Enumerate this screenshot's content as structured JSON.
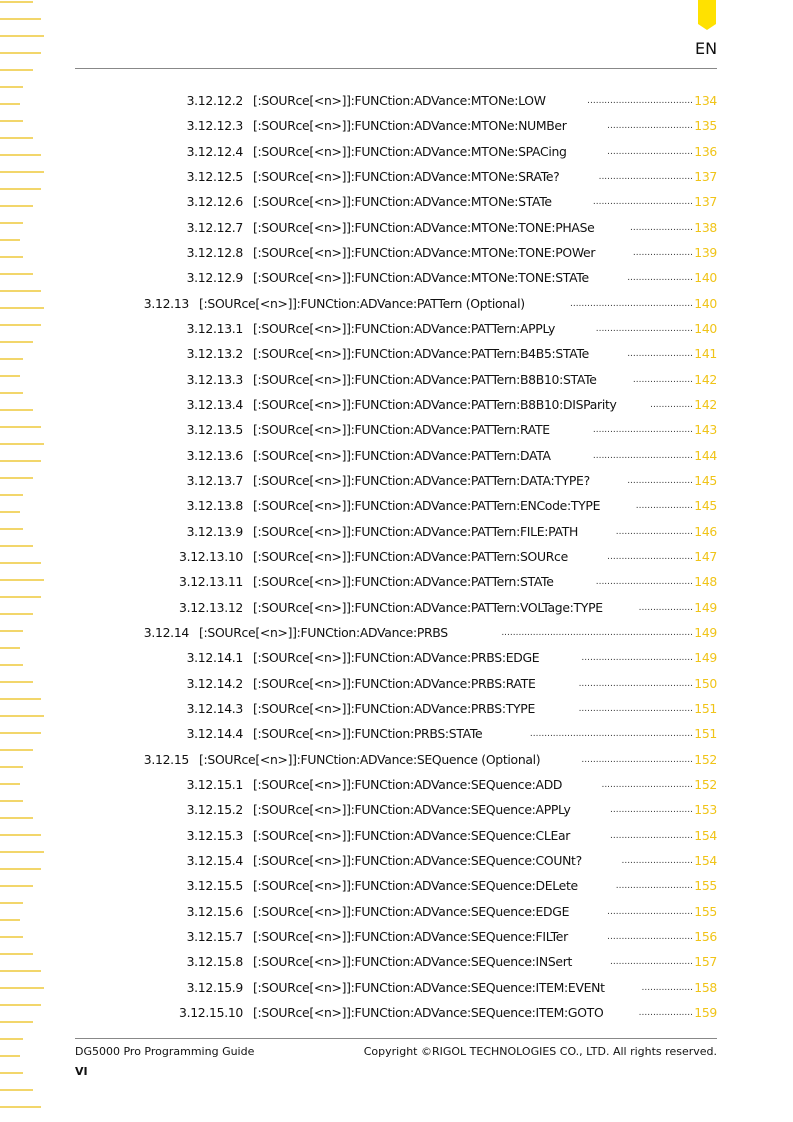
{
  "header": {
    "language": "EN",
    "accent": "#ffe100",
    "link_color": "#f0c419"
  },
  "toc": [
    {
      "level": 3,
      "num": "3.12.12.2",
      "title": "[:SOURce[<n>]]:FUNCtion:ADVance:MTONe:LOW",
      "page": "134"
    },
    {
      "level": 3,
      "num": "3.12.12.3",
      "title": "[:SOURce[<n>]]:FUNCtion:ADVance:MTONe:NUMBer",
      "page": "135"
    },
    {
      "level": 3,
      "num": "3.12.12.4",
      "title": "[:SOURce[<n>]]:FUNCtion:ADVance:MTONe:SPACing",
      "page": "136"
    },
    {
      "level": 3,
      "num": "3.12.12.5",
      "title": "[:SOURce[<n>]]:FUNCtion:ADVance:MTONe:SRATe?",
      "page": "137"
    },
    {
      "level": 3,
      "num": "3.12.12.6",
      "title": "[:SOURce[<n>]]:FUNCtion:ADVance:MTONe:STATe",
      "page": "137"
    },
    {
      "level": 3,
      "num": "3.12.12.7",
      "title": "[:SOURce[<n>]]:FUNCtion:ADVance:MTONe:TONE:PHASe",
      "page": "138"
    },
    {
      "level": 3,
      "num": "3.12.12.8",
      "title": "[:SOURce[<n>]]:FUNCtion:ADVance:MTONe:TONE:POWer",
      "page": "139"
    },
    {
      "level": 3,
      "num": "3.12.12.9",
      "title": "[:SOURce[<n>]]:FUNCtion:ADVance:MTONe:TONE:STATe",
      "page": "140"
    },
    {
      "level": 2,
      "num": "3.12.13",
      "title": "[:SOURce[<n>]]:FUNCtion:ADVance:PATTern (Optional)",
      "page": "140"
    },
    {
      "level": 3,
      "num": "3.12.13.1",
      "title": "[:SOURce[<n>]]:FUNCtion:ADVance:PATTern:APPLy",
      "page": "140"
    },
    {
      "level": 3,
      "num": "3.12.13.2",
      "title": "[:SOURce[<n>]]:FUNCtion:ADVance:PATTern:B4B5:STATe",
      "page": "141"
    },
    {
      "level": 3,
      "num": "3.12.13.3",
      "title": "[:SOURce[<n>]]:FUNCtion:ADVance:PATTern:B8B10:STATe",
      "page": "142"
    },
    {
      "level": 3,
      "num": "3.12.13.4",
      "title": "[:SOURce[<n>]]:FUNCtion:ADVance:PATTern:B8B10:DISParity",
      "page": "142"
    },
    {
      "level": 3,
      "num": "3.12.13.5",
      "title": "[:SOURce[<n>]]:FUNCtion:ADVance:PATTern:RATE",
      "page": "143"
    },
    {
      "level": 3,
      "num": "3.12.13.6",
      "title": "[:SOURce[<n>]]:FUNCtion:ADVance:PATTern:DATA",
      "page": "144"
    },
    {
      "level": 3,
      "num": "3.12.13.7",
      "title": "[:SOURce[<n>]]:FUNCtion:ADVance:PATTern:DATA:TYPE?",
      "page": "145"
    },
    {
      "level": 3,
      "num": "3.12.13.8",
      "title": "[:SOURce[<n>]]:FUNCtion:ADVance:PATTern:ENCode:TYPE",
      "page": "145"
    },
    {
      "level": 3,
      "num": "3.12.13.9",
      "title": "[:SOURce[<n>]]:FUNCtion:ADVance:PATTern:FILE:PATH",
      "page": "146"
    },
    {
      "level": 3,
      "num": "3.12.13.10",
      "title": "[:SOURce[<n>]]:FUNCtion:ADVance:PATTern:SOURce",
      "page": "147"
    },
    {
      "level": 3,
      "num": "3.12.13.11",
      "title": "[:SOURce[<n>]]:FUNCtion:ADVance:PATTern:STATe",
      "page": "148"
    },
    {
      "level": 3,
      "num": "3.12.13.12",
      "title": "[:SOURce[<n>]]:FUNCtion:ADVance:PATTern:VOLTage:TYPE",
      "page": "149"
    },
    {
      "level": 2,
      "num": "3.12.14",
      "title": "[:SOURce[<n>]]:FUNCtion:ADVance:PRBS",
      "page": "149"
    },
    {
      "level": 3,
      "num": "3.12.14.1",
      "title": "[:SOURce[<n>]]:FUNCtion:ADVance:PRBS:EDGE",
      "page": "149"
    },
    {
      "level": 3,
      "num": "3.12.14.2",
      "title": "[:SOURce[<n>]]:FUNCtion:ADVance:PRBS:RATE",
      "page": "150"
    },
    {
      "level": 3,
      "num": "3.12.14.3",
      "title": "[:SOURce[<n>]]:FUNCtion:ADVance:PRBS:TYPE",
      "page": "151"
    },
    {
      "level": 3,
      "num": "3.12.14.4",
      "title": "[:SOURce[<n>]]:FUNCtion:PRBS:STATe",
      "page": "151"
    },
    {
      "level": 2,
      "num": "3.12.15",
      "title": "[:SOURce[<n>]]:FUNCtion:ADVance:SEQuence (Optional)",
      "page": "152"
    },
    {
      "level": 3,
      "num": "3.12.15.1",
      "title": "[:SOURce[<n>]]:FUNCtion:ADVance:SEQuence:ADD",
      "page": "152"
    },
    {
      "level": 3,
      "num": "3.12.15.2",
      "title": "[:SOURce[<n>]]:FUNCtion:ADVance:SEQuence:APPLy",
      "page": "153"
    },
    {
      "level": 3,
      "num": "3.12.15.3",
      "title": "[:SOURce[<n>]]:FUNCtion:ADVance:SEQuence:CLEar",
      "page": "154"
    },
    {
      "level": 3,
      "num": "3.12.15.4",
      "title": "[:SOURce[<n>]]:FUNCtion:ADVance:SEQuence:COUNt?",
      "page": "154"
    },
    {
      "level": 3,
      "num": "3.12.15.5",
      "title": "[:SOURce[<n>]]:FUNCtion:ADVance:SEQuence:DELete",
      "page": "155"
    },
    {
      "level": 3,
      "num": "3.12.15.6",
      "title": "[:SOURce[<n>]]:FUNCtion:ADVance:SEQuence:EDGE",
      "page": "155"
    },
    {
      "level": 3,
      "num": "3.12.15.7",
      "title": "[:SOURce[<n>]]:FUNCtion:ADVance:SEQuence:FILTer",
      "page": "156"
    },
    {
      "level": 3,
      "num": "3.12.15.8",
      "title": "[:SOURce[<n>]]:FUNCtion:ADVance:SEQuence:INSert",
      "page": "157"
    },
    {
      "level": 3,
      "num": "3.12.15.9",
      "title": "[:SOURce[<n>]]:FUNCtion:ADVance:SEQuence:ITEM:EVENt",
      "page": "158"
    },
    {
      "level": 3,
      "num": "3.12.15.10",
      "title": "[:SOURce[<n>]]:FUNCtion:ADVance:SEQuence:ITEM:GOTO",
      "page": "159"
    }
  ],
  "footer": {
    "guide": "DG5000 Pro Programming Guide",
    "copyright": "Copyright ©RIGOL TECHNOLOGIES CO., LTD. All rights reserved.",
    "page_number": "VI"
  }
}
